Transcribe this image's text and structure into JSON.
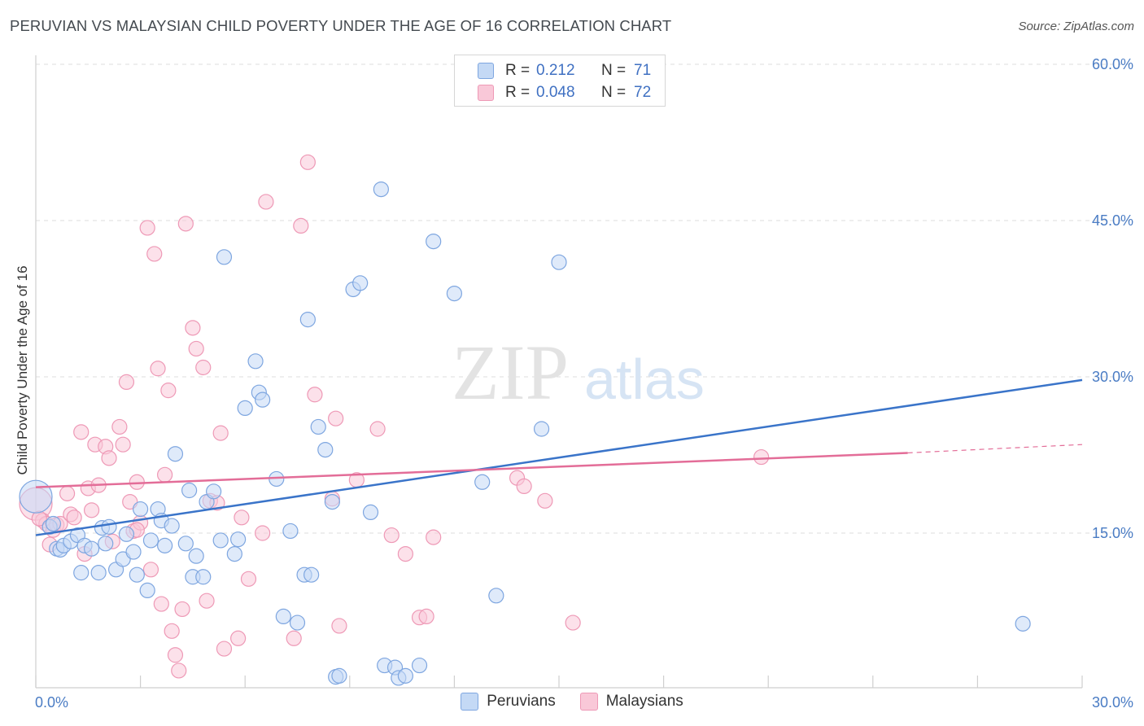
{
  "title": "PERUVIAN VS MALAYSIAN CHILD POVERTY UNDER THE AGE OF 16 CORRELATION CHART",
  "source": "Source: ZipAtlas.com",
  "watermark": {
    "zip": "ZIP",
    "atlas": "atlas"
  },
  "colors": {
    "peruvians_fill": "#c4d9f5",
    "peruvians_stroke": "#7ea6e0",
    "peruvians_line": "#3a74c9",
    "malaysians_fill": "#f9c8d8",
    "malaysians_stroke": "#ee99b6",
    "malaysians_line": "#e36d98"
  },
  "legend": {
    "rows": [
      {
        "r_label": "R =",
        "r_value": "0.212",
        "n_label": "N =",
        "n_value": "71"
      },
      {
        "r_label": "R =",
        "r_value": "0.048",
        "n_label": "N =",
        "n_value": "72"
      }
    ]
  },
  "bottom_legend": [
    "Peruvians",
    "Malaysians"
  ],
  "chart_data": {
    "type": "scatter",
    "title": "PERUVIAN VS MALAYSIAN CHILD POVERTY UNDER THE AGE OF 16 CORRELATION CHART",
    "xlabel": "",
    "ylabel": "Child Poverty Under the Age of 16",
    "xlim": [
      0,
      30
    ],
    "ylim": [
      0,
      60
    ],
    "x_tick_labels": [
      "0.0%",
      "30.0%"
    ],
    "y_ticks": [
      15,
      30,
      45,
      60
    ],
    "y_tick_labels": [
      "15.0%",
      "30.0%",
      "45.0%",
      "60.0%"
    ],
    "grid": true,
    "legend_position": "top-center",
    "series": [
      {
        "name": "Peruvians",
        "trend": {
          "x0": 0,
          "y0": 14.8,
          "x1": 30,
          "y1": 29.7
        },
        "points": [
          [
            0.0,
            18.5
          ],
          [
            0.4,
            15.6
          ],
          [
            0.5,
            15.9
          ],
          [
            0.6,
            13.5
          ],
          [
            0.7,
            13.4
          ],
          [
            0.8,
            13.8
          ],
          [
            1.0,
            14.2
          ],
          [
            1.2,
            14.8
          ],
          [
            1.3,
            11.2
          ],
          [
            1.4,
            13.8
          ],
          [
            1.6,
            13.5
          ],
          [
            1.8,
            11.2
          ],
          [
            1.9,
            15.5
          ],
          [
            2.0,
            14.0
          ],
          [
            2.1,
            15.6
          ],
          [
            2.3,
            11.5
          ],
          [
            2.5,
            12.5
          ],
          [
            2.6,
            14.9
          ],
          [
            2.8,
            13.2
          ],
          [
            2.9,
            11.0
          ],
          [
            3.0,
            17.3
          ],
          [
            3.2,
            9.5
          ],
          [
            3.3,
            14.3
          ],
          [
            3.5,
            17.3
          ],
          [
            3.6,
            16.2
          ],
          [
            3.7,
            13.8
          ],
          [
            3.9,
            15.7
          ],
          [
            4.0,
            22.6
          ],
          [
            4.3,
            14.0
          ],
          [
            4.4,
            19.1
          ],
          [
            4.5,
            10.8
          ],
          [
            4.6,
            12.8
          ],
          [
            4.8,
            10.8
          ],
          [
            4.9,
            18.0
          ],
          [
            5.1,
            19.0
          ],
          [
            5.3,
            14.3
          ],
          [
            5.4,
            41.5
          ],
          [
            5.7,
            13.0
          ],
          [
            5.8,
            14.4
          ],
          [
            6.0,
            27.0
          ],
          [
            6.3,
            31.5
          ],
          [
            6.4,
            28.5
          ],
          [
            6.5,
            27.8
          ],
          [
            6.9,
            20.2
          ],
          [
            7.1,
            7.0
          ],
          [
            7.3,
            15.2
          ],
          [
            7.5,
            6.4
          ],
          [
            7.7,
            11.0
          ],
          [
            7.8,
            35.5
          ],
          [
            7.9,
            11.0
          ],
          [
            8.1,
            25.2
          ],
          [
            8.3,
            23.0
          ],
          [
            8.5,
            18.0
          ],
          [
            8.6,
            1.2
          ],
          [
            8.7,
            1.3
          ],
          [
            9.1,
            38.4
          ],
          [
            9.3,
            39.0
          ],
          [
            9.6,
            17.0
          ],
          [
            9.9,
            48.0
          ],
          [
            10.0,
            2.3
          ],
          [
            10.3,
            2.1
          ],
          [
            10.4,
            1.1
          ],
          [
            10.6,
            1.3
          ],
          [
            11.0,
            2.3
          ],
          [
            11.4,
            43.0
          ],
          [
            12.0,
            38.0
          ],
          [
            12.8,
            19.9
          ],
          [
            13.2,
            9.0
          ],
          [
            14.5,
            25.0
          ],
          [
            15.0,
            41.0
          ],
          [
            28.3,
            6.3
          ]
        ]
      },
      {
        "name": "Malaysians",
        "trend": {
          "x0": 0,
          "y0": 19.4,
          "x1": 25.0,
          "y1": 22.7
        },
        "trend_dashed_end": {
          "x": 30,
          "y": 23.5
        },
        "points": [
          [
            0.0,
            17.8
          ],
          [
            0.2,
            16.2
          ],
          [
            0.3,
            15.9
          ],
          [
            0.4,
            13.9
          ],
          [
            0.5,
            15.3
          ],
          [
            0.6,
            15.8
          ],
          [
            0.7,
            15.9
          ],
          [
            0.9,
            18.8
          ],
          [
            1.0,
            16.8
          ],
          [
            1.1,
            16.5
          ],
          [
            1.3,
            24.7
          ],
          [
            1.4,
            13.0
          ],
          [
            1.5,
            19.3
          ],
          [
            1.6,
            17.2
          ],
          [
            1.7,
            23.5
          ],
          [
            1.8,
            19.6
          ],
          [
            2.0,
            23.3
          ],
          [
            2.1,
            22.2
          ],
          [
            2.2,
            14.2
          ],
          [
            2.4,
            25.2
          ],
          [
            2.5,
            23.5
          ],
          [
            2.6,
            29.5
          ],
          [
            2.7,
            18.0
          ],
          [
            2.8,
            15.2
          ],
          [
            2.9,
            19.9
          ],
          [
            3.0,
            16.0
          ],
          [
            3.2,
            44.3
          ],
          [
            3.3,
            11.5
          ],
          [
            3.4,
            41.8
          ],
          [
            3.5,
            30.8
          ],
          [
            3.6,
            8.2
          ],
          [
            3.7,
            20.6
          ],
          [
            3.8,
            28.7
          ],
          [
            3.9,
            5.6
          ],
          [
            4.0,
            3.3
          ],
          [
            4.1,
            1.8
          ],
          [
            4.2,
            7.7
          ],
          [
            4.3,
            44.7
          ],
          [
            4.5,
            34.7
          ],
          [
            4.6,
            32.7
          ],
          [
            4.8,
            30.9
          ],
          [
            4.9,
            8.5
          ],
          [
            5.0,
            18.1
          ],
          [
            5.2,
            17.9
          ],
          [
            5.3,
            24.6
          ],
          [
            5.4,
            3.9
          ],
          [
            5.8,
            4.9
          ],
          [
            5.9,
            16.5
          ],
          [
            6.1,
            10.6
          ],
          [
            6.5,
            15.0
          ],
          [
            6.6,
            46.8
          ],
          [
            7.4,
            4.9
          ],
          [
            7.6,
            44.5
          ],
          [
            7.8,
            50.6
          ],
          [
            8.0,
            28.3
          ],
          [
            8.5,
            18.3
          ],
          [
            8.6,
            26.0
          ],
          [
            8.7,
            6.1
          ],
          [
            9.2,
            20.1
          ],
          [
            9.8,
            25.0
          ],
          [
            10.2,
            14.8
          ],
          [
            10.6,
            13.0
          ],
          [
            11.0,
            6.9
          ],
          [
            11.2,
            7.0
          ],
          [
            11.4,
            14.6
          ],
          [
            13.8,
            20.3
          ],
          [
            14.0,
            19.5
          ],
          [
            14.6,
            18.1
          ],
          [
            15.4,
            6.4
          ],
          [
            20.8,
            22.3
          ],
          [
            0.1,
            16.4
          ],
          [
            2.9,
            15.3
          ]
        ]
      }
    ]
  }
}
